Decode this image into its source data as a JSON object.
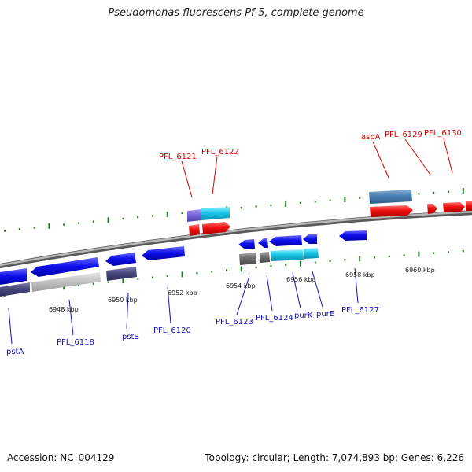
{
  "title": "Pseudomonas fluorescens Pf-5, complete genome",
  "footer": {
    "accession": "Accession: NC_004129",
    "topology": "Topology: circular; Length: 7,074,893 bp; Genes: 6,226"
  },
  "colors": {
    "backbone": "#8a8a8a",
    "tick": "#1a7a1a",
    "forward_label": "#d40000",
    "reverse_label": "#1010c0"
  },
  "scale_labels": [
    "6948 kbp",
    "6950 kbp",
    "6952 kbp",
    "6954 kbp",
    "6956 kbp",
    "6958 kbp",
    "6960 kbp"
  ],
  "gene_labels_top": [
    "PFL_6121",
    "PFL_6122",
    "aspA",
    "PFL_6129",
    "PFL_6130"
  ],
  "gene_labels_bottom": [
    "pstA",
    "PFL_6118",
    "pstS",
    "PFL_6120",
    "PFL_6123",
    "PFL_6124",
    "purK",
    "purE",
    "PFL_6127"
  ]
}
